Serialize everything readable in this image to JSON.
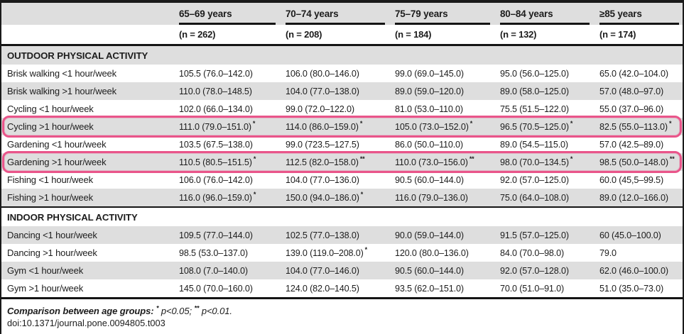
{
  "colors": {
    "row_shade": "#dedede",
    "highlight_ring": "#e9558a",
    "rule_black": "#1a1a1a"
  },
  "table": {
    "col_headers": [
      {
        "label": "65–69 years",
        "n": "(n = 262)"
      },
      {
        "label": "70–74 years",
        "n": "(n = 208)"
      },
      {
        "label": "75–79 years",
        "n": "(n = 184)"
      },
      {
        "label": "80–84 years",
        "n": "(n = 132)"
      },
      {
        "label": "≥85 years",
        "n": "(n = 174)"
      }
    ],
    "sections": [
      {
        "title": "OUTDOOR PHYSICAL ACTIVITY",
        "rows": [
          {
            "label": "Brisk walking <1 hour/week",
            "cells": [
              {
                "v": "105.5 (76.0–142.0)",
                "m": ""
              },
              {
                "v": "106.0 (80.0–146.0)",
                "m": ""
              },
              {
                "v": "99.0 (69.0–145.0)",
                "m": ""
              },
              {
                "v": "95.0 (56.0–125.0)",
                "m": ""
              },
              {
                "v": "65.0 (42.0–104.0)",
                "m": ""
              }
            ]
          },
          {
            "label": "Brisk walking >1 hour/week",
            "cells": [
              {
                "v": "110.0 (78.0–148.5)",
                "m": ""
              },
              {
                "v": "104.0 (77.0–138.0)",
                "m": ""
              },
              {
                "v": "89.0 (59.0–120.0)",
                "m": ""
              },
              {
                "v": "89.0 (58.0–125.0)",
                "m": ""
              },
              {
                "v": "57.0 (48.0–97.0)",
                "m": ""
              }
            ]
          },
          {
            "label": "Cycling <1 hour/week",
            "cells": [
              {
                "v": "102.0 (66.0–134.0)",
                "m": ""
              },
              {
                "v": "99.0 (72.0–122.0)",
                "m": ""
              },
              {
                "v": "81.0 (53.0–110.0)",
                "m": ""
              },
              {
                "v": "75.5 (51.5–122.0)",
                "m": ""
              },
              {
                "v": "55.0 (37.0–96.0)",
                "m": ""
              }
            ]
          },
          {
            "label": "Cycling >1 hour/week",
            "highlighted": true,
            "cells": [
              {
                "v": "111.0 (79.0–151.0)",
                "m": "*"
              },
              {
                "v": "114.0 (86.0–159.0)",
                "m": "*"
              },
              {
                "v": "105.0 (73.0–152.0)",
                "m": "*"
              },
              {
                "v": "96.5 (70.5–125.0)",
                "m": "*"
              },
              {
                "v": "82.5 (55.0–113.0)",
                "m": "*"
              }
            ]
          },
          {
            "label": "Gardening <1 hour/week",
            "cells": [
              {
                "v": "103.5 (67.5–138.0)",
                "m": ""
              },
              {
                "v": "99.0 (723.5–127.5)",
                "m": ""
              },
              {
                "v": "86.0 (50.0–110.0)",
                "m": ""
              },
              {
                "v": "89.0 (54.5–115.0)",
                "m": ""
              },
              {
                "v": "57.0 (42.5–89.0)",
                "m": ""
              }
            ]
          },
          {
            "label": "Gardening >1 hour/week",
            "highlighted": true,
            "cells": [
              {
                "v": "110.5 (80.5–151.5)",
                "m": "*"
              },
              {
                "v": "112.5 (82.0–158.0)",
                "m": "**"
              },
              {
                "v": "110.0 (73.0–156.0)",
                "m": "**"
              },
              {
                "v": "98.0 (70.0–134.5)",
                "m": "*"
              },
              {
                "v": "98.5 (50.0–148.0)",
                "m": "**"
              }
            ]
          },
          {
            "label": "Fishing <1 hour/week",
            "cells": [
              {
                "v": "106.0 (76.0–142.0)",
                "m": ""
              },
              {
                "v": "104.0 (77.0–136.0)",
                "m": ""
              },
              {
                "v": "90.5 (60.0–144.0)",
                "m": ""
              },
              {
                "v": "92.0 (57.0–125.0)",
                "m": ""
              },
              {
                "v": "60.0 (45,5–99.5)",
                "m": ""
              }
            ]
          },
          {
            "label": "Fishing >1 hour/week",
            "cells": [
              {
                "v": "116.0 (96.0–159.0)",
                "m": "*"
              },
              {
                "v": "150.0 (94.0–186.0)",
                "m": "*"
              },
              {
                "v": "116.0 (79.0–136.0)",
                "m": ""
              },
              {
                "v": "75.0 (64.0–108.0)",
                "m": ""
              },
              {
                "v": "89.0 (12.0–166.0)",
                "m": ""
              }
            ]
          }
        ]
      },
      {
        "title": "INDOOR PHYSICAL ACTIVITY",
        "rows": [
          {
            "label": "Dancing <1 hour/week",
            "cells": [
              {
                "v": "109.5 (77.0–144.0)",
                "m": ""
              },
              {
                "v": "102.5 (77.0–138.0)",
                "m": ""
              },
              {
                "v": "90.0 (59.0–144.0)",
                "m": ""
              },
              {
                "v": "91.5 (57.0–125.0)",
                "m": ""
              },
              {
                "v": "60 (45.0–100.0)",
                "m": ""
              }
            ]
          },
          {
            "label": "Dancing >1 hour/week",
            "cells": [
              {
                "v": "98.5 (53.0–137.0)",
                "m": ""
              },
              {
                "v": "139.0 (119.0–208.0)",
                "m": "*"
              },
              {
                "v": "120.0 (80.0–136.0)",
                "m": ""
              },
              {
                "v": "84.0 (70.0–98.0)",
                "m": ""
              },
              {
                "v": "79.0",
                "m": ""
              }
            ]
          },
          {
            "label": "Gym <1 hour/week",
            "cells": [
              {
                "v": "108.0 (7.0–140.0)",
                "m": ""
              },
              {
                "v": "104.0 (77.0–146.0)",
                "m": ""
              },
              {
                "v": "90.5 (60.0–144.0)",
                "m": ""
              },
              {
                "v": "92.0 (57.0–128.0)",
                "m": ""
              },
              {
                "v": "62.0 (46.0–100.0)",
                "m": ""
              }
            ]
          },
          {
            "label": "Gym >1 hour/week",
            "cells": [
              {
                "v": "145.0 (70.0–160.0)",
                "m": ""
              },
              {
                "v": "124.0 (82.0–140.5)",
                "m": ""
              },
              {
                "v": "93.5 (62.0–151.0)",
                "m": ""
              },
              {
                "v": "70.0 (51.0–91.0)",
                "m": ""
              },
              {
                "v": "51.0 (35.0–73.0)",
                "m": ""
              }
            ]
          }
        ]
      }
    ]
  },
  "footnote": {
    "lead": "Comparison between age groups:",
    "sig1_marker": "*",
    "sig1_text": "p<0.05;",
    "sig2_marker": "**",
    "sig2_text": "p<0.01."
  },
  "doi_line": "doi:10.1371/journal.pone.0094805.t003"
}
